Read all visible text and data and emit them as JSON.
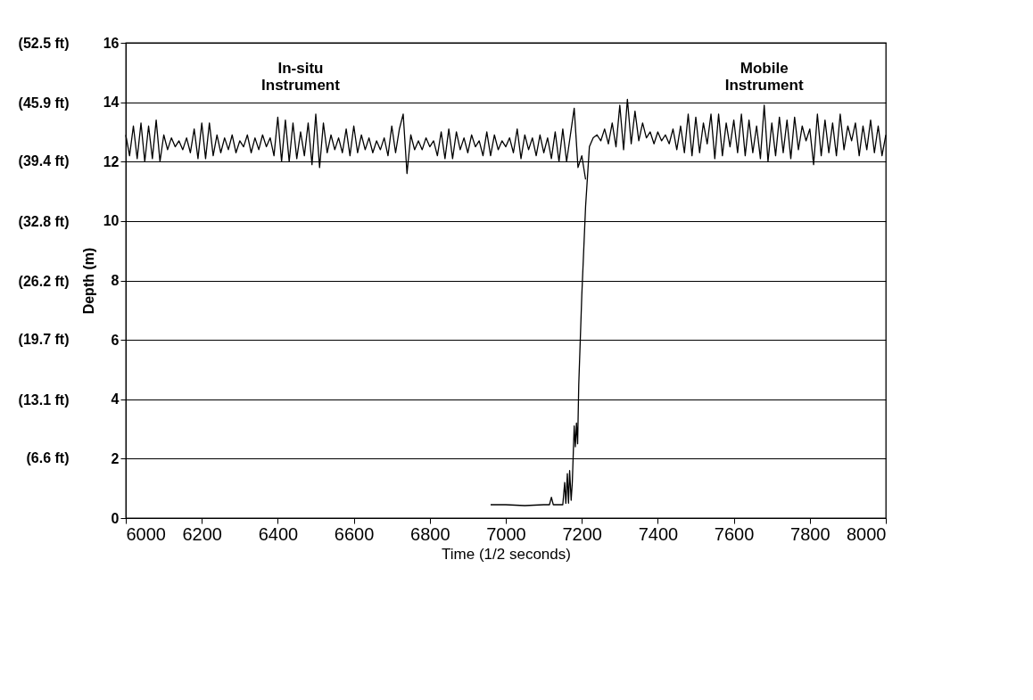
{
  "chart_data": {
    "type": "line",
    "xlabel": "Time (1/2 seconds)",
    "ylabel": "Depth (m)",
    "xlim": [
      6000,
      8000
    ],
    "xticks": [
      6000,
      6200,
      6400,
      6600,
      6800,
      7000,
      7200,
      7400,
      7600,
      7800,
      8000
    ],
    "ylim": [
      0,
      16
    ],
    "yticks": [
      0,
      2,
      4,
      6,
      8,
      10,
      12,
      14,
      16
    ],
    "y2lim": [
      0,
      52.5
    ],
    "y2ticks": [
      {
        "value": 6.6,
        "label": "(6.6 ft)"
      },
      {
        "value": 13.1,
        "label": "(13.1 ft)"
      },
      {
        "value": 19.7,
        "label": "(19.7 ft)"
      },
      {
        "value": 26.2,
        "label": "(26.2 ft)"
      },
      {
        "value": 32.8,
        "label": "(32.8 ft)"
      },
      {
        "value": 39.4,
        "label": "(39.4 ft)"
      },
      {
        "value": 45.9,
        "label": "(45.9 ft)"
      },
      {
        "value": 52.5,
        "label": "(52.5 ft)"
      }
    ],
    "grid": "y",
    "marker": "none",
    "line_style": "solid",
    "annotations": [
      "In-situ\nInstrument",
      "Mobile\nInstrument"
    ],
    "series": [
      {
        "color": "#000000",
        "x": [
          6000,
          6010,
          6020,
          6030,
          6040,
          6050,
          6060,
          6070,
          6080,
          6090,
          6100,
          6110,
          6120,
          6130,
          6140,
          6150,
          6160,
          6170,
          6180,
          6190,
          6200,
          6210,
          6220,
          6230,
          6240,
          6250,
          6260,
          6270,
          6280,
          6290,
          6300,
          6310,
          6320,
          6330,
          6340,
          6350,
          6360,
          6370,
          6380,
          6390,
          6400,
          6410,
          6420,
          6430,
          6440,
          6450,
          6460,
          6470,
          6480,
          6490,
          6500,
          6510,
          6520,
          6530,
          6540,
          6550,
          6560,
          6570,
          6580,
          6590,
          6600,
          6610,
          6620,
          6630,
          6640,
          6650,
          6660,
          6670,
          6680,
          6690,
          6700,
          6710,
          6720,
          6730,
          6740,
          6750,
          6760,
          6770,
          6780,
          6790,
          6800,
          6810,
          6820,
          6830,
          6840,
          6850,
          6860,
          6870,
          6880,
          6890,
          6900,
          6910,
          6920,
          6930,
          6940,
          6950,
          6960,
          6970,
          6980,
          6990,
          7000,
          7010,
          7020,
          7030,
          7040,
          7050,
          7060,
          7070,
          7080,
          7090,
          7100,
          7110,
          7120,
          7130,
          7140,
          7150,
          7160,
          7170,
          7180,
          7190,
          7200,
          7210
        ],
        "values": [
          12.9,
          12.2,
          13.2,
          12.1,
          13.3,
          12.0,
          13.2,
          12.1,
          13.4,
          12.0,
          12.9,
          12.4,
          12.8,
          12.5,
          12.7,
          12.4,
          12.8,
          12.3,
          13.1,
          12.1,
          13.3,
          12.1,
          13.3,
          12.2,
          12.9,
          12.3,
          12.8,
          12.4,
          12.9,
          12.3,
          12.7,
          12.5,
          12.9,
          12.3,
          12.8,
          12.4,
          12.9,
          12.5,
          12.8,
          12.2,
          13.5,
          12.0,
          13.4,
          12.0,
          13.3,
          12.1,
          13.0,
          12.2,
          13.3,
          11.9,
          13.6,
          11.8,
          13.3,
          12.3,
          12.9,
          12.4,
          12.8,
          12.3,
          13.1,
          12.2,
          13.2,
          12.3,
          12.9,
          12.4,
          12.8,
          12.3,
          12.7,
          12.4,
          12.8,
          12.2,
          13.2,
          12.3,
          13.1,
          13.6,
          11.6,
          12.9,
          12.4,
          12.7,
          12.4,
          12.8,
          12.5,
          12.7,
          12.2,
          13.0,
          12.1,
          13.1,
          12.1,
          13.0,
          12.4,
          12.8,
          12.3,
          12.9,
          12.5,
          12.7,
          12.2,
          13.0,
          12.2,
          12.9,
          12.4,
          12.7,
          12.5,
          12.8,
          12.3,
          13.1,
          12.1,
          12.9,
          12.4,
          12.8,
          12.2,
          12.9,
          12.3,
          12.8,
          12.1,
          13.0,
          12.0,
          13.1,
          12.0,
          12.9,
          13.8,
          11.8,
          12.2,
          11.4
        ]
      },
      {
        "color": "#000000",
        "x": [
          6960,
          7000,
          7050,
          7100,
          7115,
          7120,
          7125,
          7150,
          7155,
          7158,
          7162,
          7165,
          7168,
          7172,
          7175,
          7180,
          7183,
          7186,
          7189,
          7192,
          7200,
          7210,
          7220,
          7230,
          7240,
          7250,
          7260,
          7270,
          7280,
          7290,
          7300,
          7310,
          7320,
          7330,
          7340,
          7350,
          7360,
          7370,
          7380,
          7390,
          7400,
          7410,
          7420,
          7430,
          7440,
          7450,
          7460,
          7470,
          7480,
          7490,
          7500,
          7510,
          7520,
          7530,
          7540,
          7550,
          7560,
          7570,
          7580,
          7590,
          7600,
          7610,
          7620,
          7630,
          7640,
          7650,
          7660,
          7670,
          7680,
          7690,
          7700,
          7710,
          7720,
          7730,
          7740,
          7750,
          7760,
          7770,
          7780,
          7790,
          7800,
          7810,
          7820,
          7830,
          7840,
          7850,
          7860,
          7870,
          7880,
          7890,
          7900,
          7910,
          7920,
          7930,
          7940,
          7950,
          7960,
          7970,
          7980,
          7990,
          8000
        ],
        "values": [
          0.45,
          0.45,
          0.42,
          0.45,
          0.45,
          0.7,
          0.45,
          0.45,
          1.2,
          0.5,
          1.5,
          0.5,
          1.6,
          0.6,
          1.2,
          3.1,
          2.4,
          3.2,
          2.5,
          4.5,
          7.5,
          10.5,
          12.5,
          12.8,
          12.9,
          12.7,
          13.1,
          12.6,
          13.3,
          12.5,
          13.9,
          12.4,
          14.1,
          12.6,
          13.7,
          12.7,
          13.3,
          12.8,
          13.0,
          12.6,
          13.0,
          12.7,
          12.9,
          12.6,
          13.1,
          12.4,
          13.2,
          12.3,
          13.6,
          12.2,
          13.5,
          12.3,
          13.3,
          12.6,
          13.6,
          12.1,
          13.6,
          12.2,
          13.3,
          12.5,
          13.4,
          12.3,
          13.6,
          12.2,
          13.4,
          12.3,
          13.2,
          12.1,
          13.9,
          12.0,
          13.3,
          12.2,
          13.5,
          12.3,
          13.4,
          12.1,
          13.5,
          12.4,
          13.2,
          12.7,
          13.1,
          11.9,
          13.6,
          12.2,
          13.4,
          12.3,
          13.3,
          12.2,
          13.6,
          12.4,
          13.2,
          12.7,
          13.3,
          12.2,
          13.2,
          12.4,
          13.4,
          12.3,
          13.2,
          12.2,
          12.9
        ]
      }
    ]
  }
}
